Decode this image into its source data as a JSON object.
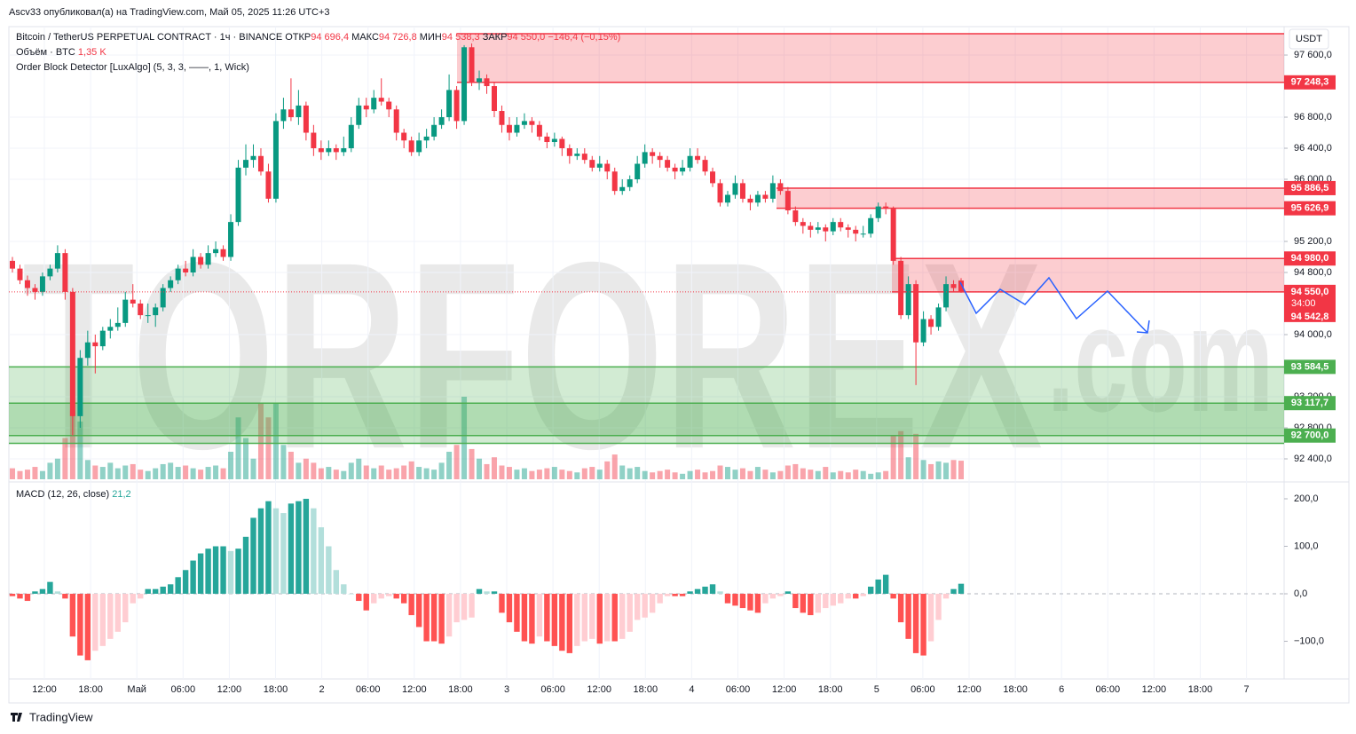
{
  "header": "Ascv33 опубликовал(а) на TradingView.com, Май 05, 2025 11:26 UTC+3",
  "footer": "TradingView",
  "watermark": [
    "TORFOREX",
    ".com"
  ],
  "chart_data": [
    {
      "type": "candlestick",
      "title": "Bitcoin / TetherUS PERPETUAL CONTRACT · 1ч · BINANCE",
      "ohlc_names": [
        "ОТКР",
        "МАКС",
        "МИН",
        "ЗАКР"
      ],
      "ohlc_value_labels": [
        "94 696,4",
        "94 726,8",
        "94 538,3",
        "94 550,0"
      ],
      "change_label": "−146,4 (−0,15%)",
      "volume_name": "Объём · BTC",
      "volume_label": "1,35 K",
      "indicator": "Order Block Detector [LuxAlgo] (5, 3, 3, ——, 1, Wick)",
      "currency": "USDT",
      "up_color": "#089981",
      "down_color": "#f23645",
      "ylim": [
        92137,
        97966
      ],
      "yticks": [
        {
          "value": 97600,
          "label": "97 600,0"
        },
        {
          "value": 96800,
          "label": "96 800,0"
        },
        {
          "value": 96400,
          "label": "96 400,0"
        },
        {
          "value": 96000,
          "label": "96 000,0"
        },
        {
          "value": 95200,
          "label": "95 200,0"
        },
        {
          "value": 94800,
          "label": "94 800,0"
        },
        {
          "value": 94000,
          "label": "94 000,0"
        },
        {
          "value": 93200,
          "label": "93 200,0"
        },
        {
          "value": 92800,
          "label": "92 800,0"
        },
        {
          "value": 92400,
          "label": "92 400,0"
        }
      ],
      "grid": true,
      "x_labels": [
        "12:00",
        "18:00",
        "Май",
        "06:00",
        "12:00",
        "18:00",
        "2",
        "06:00",
        "12:00",
        "18:00",
        "3",
        "06:00",
        "12:00",
        "18:00",
        "4",
        "06:00",
        "12:00",
        "18:00",
        "5",
        "06:00",
        "12:00",
        "18:00",
        "6",
        "06:00",
        "12:00",
        "18:00",
        "7"
      ],
      "ohlc": [
        [
          94950,
          95000,
          94800,
          94850
        ],
        [
          94850,
          94900,
          94650,
          94700
        ],
        [
          94700,
          94760,
          94500,
          94600
        ],
        [
          94600,
          94650,
          94450,
          94550
        ],
        [
          94550,
          94800,
          94500,
          94750
        ],
        [
          94750,
          94900,
          94700,
          94850
        ],
        [
          94850,
          95150,
          94800,
          95050
        ],
        [
          95050,
          95100,
          94450,
          94550
        ],
        [
          94550,
          94600,
          92700,
          92950
        ],
        [
          92950,
          93800,
          92800,
          93700
        ],
        [
          93700,
          94050,
          93600,
          93900
        ],
        [
          93900,
          94000,
          93500,
          93850
        ],
        [
          93850,
          94100,
          93800,
          94050
        ],
        [
          94050,
          94200,
          93950,
          94100
        ],
        [
          94100,
          94350,
          94050,
          94150
        ],
        [
          94150,
          94550,
          94100,
          94450
        ],
        [
          94450,
          94650,
          94350,
          94400
        ],
        [
          94400,
          94450,
          94200,
          94250
        ],
        [
          94250,
          94400,
          94150,
          94250
        ],
        [
          94250,
          94400,
          94100,
          94350
        ],
        [
          94350,
          94650,
          94300,
          94600
        ],
        [
          94600,
          94750,
          94550,
          94700
        ],
        [
          94700,
          94900,
          94650,
          94850
        ],
        [
          94850,
          94950,
          94750,
          94800
        ],
        [
          94800,
          95100,
          94750,
          95000
        ],
        [
          95000,
          95050,
          94850,
          94900
        ],
        [
          94900,
          95150,
          94850,
          95050
        ],
        [
          95050,
          95200,
          95000,
          95100
        ],
        [
          95100,
          95150,
          94950,
          95000
        ],
        [
          95000,
          95550,
          94950,
          95450
        ],
        [
          95450,
          96250,
          95400,
          96150
        ],
        [
          96150,
          96450,
          96050,
          96250
        ],
        [
          96250,
          96450,
          96150,
          96300
        ],
        [
          96300,
          96400,
          96050,
          96100
        ],
        [
          96100,
          96200,
          95700,
          95750
        ],
        [
          95750,
          96850,
          95700,
          96750
        ],
        [
          96750,
          97050,
          96650,
          96900
        ],
        [
          96900,
          97300,
          96750,
          96800
        ],
        [
          96800,
          97150,
          96700,
          96950
        ],
        [
          96950,
          97000,
          96500,
          96600
        ],
        [
          96600,
          96700,
          96300,
          96400
        ],
        [
          96400,
          96500,
          96250,
          96350
        ],
        [
          96350,
          96500,
          96300,
          96400
        ],
        [
          96400,
          96450,
          96250,
          96350
        ],
        [
          96350,
          96550,
          96300,
          96400
        ],
        [
          96400,
          96800,
          96350,
          96700
        ],
        [
          96700,
          97050,
          96650,
          96950
        ],
        [
          96950,
          97050,
          96800,
          96900
        ],
        [
          96900,
          97150,
          96850,
          97050
        ],
        [
          97050,
          97300,
          96950,
          97000
        ],
        [
          97000,
          97050,
          96800,
          96900
        ],
        [
          96900,
          96950,
          96500,
          96600
        ],
        [
          96600,
          96650,
          96400,
          96500
        ],
        [
          96500,
          96550,
          96300,
          96350
        ],
        [
          96350,
          96600,
          96300,
          96500
        ],
        [
          96500,
          96650,
          96400,
          96550
        ],
        [
          96550,
          96800,
          96500,
          96700
        ],
        [
          96700,
          96900,
          96650,
          96800
        ],
        [
          96800,
          97350,
          96750,
          97150
        ],
        [
          97150,
          97200,
          96650,
          96750
        ],
        [
          96750,
          97727,
          96700,
          97700
        ],
        [
          97700,
          97750,
          97200,
          97250
        ],
        [
          97250,
          97400,
          97150,
          97300
        ],
        [
          97300,
          97350,
          97100,
          97200
        ],
        [
          97200,
          97250,
          96800,
          96880
        ],
        [
          96880,
          96950,
          96600,
          96700
        ],
        [
          96700,
          96800,
          96500,
          96600
        ],
        [
          96600,
          96800,
          96550,
          96700
        ],
        [
          96700,
          96850,
          96650,
          96750
        ],
        [
          96750,
          96800,
          96600,
          96700
        ],
        [
          96700,
          96750,
          96500,
          96550
        ],
        [
          96550,
          96600,
          96400,
          96480
        ],
        [
          96480,
          96600,
          96420,
          96520
        ],
        [
          96520,
          96550,
          96300,
          96400
        ],
        [
          96400,
          96450,
          96200,
          96300
        ],
        [
          96300,
          96400,
          96250,
          96330
        ],
        [
          96330,
          96400,
          96200,
          96250
        ],
        [
          96250,
          96300,
          96100,
          96150
        ],
        [
          96150,
          96300,
          96100,
          96200
        ],
        [
          96200,
          96250,
          96000,
          96100
        ],
        [
          96100,
          96150,
          95800,
          95850
        ],
        [
          95850,
          96000,
          95800,
          95900
        ],
        [
          95900,
          96050,
          95850,
          96000
        ],
        [
          96000,
          96300,
          95950,
          96200
        ],
        [
          96200,
          96450,
          96150,
          96350
        ],
        [
          96350,
          96400,
          96200,
          96300
        ],
        [
          96300,
          96350,
          96150,
          96250
        ],
        [
          96250,
          96300,
          96100,
          96150
        ],
        [
          96150,
          96200,
          96000,
          96100
        ],
        [
          96100,
          96250,
          96050,
          96150
        ],
        [
          96150,
          96400,
          96100,
          96300
        ],
        [
          96300,
          96400,
          96200,
          96250
        ],
        [
          96250,
          96300,
          96050,
          96100
        ],
        [
          96100,
          96150,
          95900,
          95950
        ],
        [
          95950,
          96000,
          95650,
          95700
        ],
        [
          95700,
          95850,
          95650,
          95800
        ],
        [
          95800,
          96050,
          95750,
          95950
        ],
        [
          95950,
          96000,
          95700,
          95750
        ],
        [
          95750,
          95800,
          95600,
          95700
        ],
        [
          95700,
          95850,
          95650,
          95800
        ],
        [
          95800,
          95850,
          95700,
          95750
        ],
        [
          95750,
          96050,
          95700,
          95950
        ],
        [
          95950,
          96000,
          95800,
          95850
        ],
        [
          95850,
          95900,
          95550,
          95600
        ],
        [
          95600,
          95650,
          95400,
          95450
        ],
        [
          95450,
          95500,
          95300,
          95400
        ],
        [
          95400,
          95450,
          95250,
          95350
        ],
        [
          95350,
          95450,
          95300,
          95380
        ],
        [
          95380,
          95420,
          95200,
          95330
        ],
        [
          95330,
          95500,
          95280,
          95450
        ],
        [
          95450,
          95500,
          95330,
          95380
        ],
        [
          95380,
          95420,
          95250,
          95350
        ],
        [
          95350,
          95400,
          95200,
          95300
        ],
        [
          95300,
          95400,
          95250,
          95300
        ],
        [
          95300,
          95550,
          95250,
          95500
        ],
        [
          95500,
          95700,
          95450,
          95650
        ],
        [
          95650,
          95700,
          95550,
          95620
        ],
        [
          95620,
          95650,
          94900,
          94950
        ],
        [
          94950,
          95000,
          94200,
          94250
        ],
        [
          94250,
          94750,
          94200,
          94650
        ],
        [
          94650,
          94700,
          93350,
          93900
        ],
        [
          93900,
          94300,
          93850,
          94200
        ],
        [
          94200,
          94250,
          94000,
          94100
        ],
        [
          94100,
          94400,
          94050,
          94350
        ],
        [
          94350,
          94750,
          94300,
          94650
        ],
        [
          94650,
          94700,
          94550,
          94600
        ],
        [
          94696.4,
          94726.8,
          94538.3,
          94550
        ]
      ],
      "volume": [
        0.8,
        0.6,
        0.7,
        0.9,
        0.6,
        1.2,
        1.5,
        3.0,
        5.0,
        4.2,
        1.4,
        1.0,
        0.9,
        1.2,
        0.8,
        1.0,
        1.1,
        0.7,
        0.6,
        0.8,
        1.1,
        1.2,
        0.9,
        1.0,
        0.8,
        0.7,
        0.9,
        1.0,
        0.8,
        2.0,
        4.5,
        3.0,
        1.5,
        5.5,
        4.5,
        5.5,
        2.5,
        2.0,
        1.2,
        1.5,
        1.2,
        0.8,
        0.9,
        0.7,
        0.6,
        1.2,
        1.5,
        1.0,
        0.8,
        1.0,
        0.7,
        0.8,
        1.0,
        1.3,
        0.9,
        0.8,
        0.7,
        1.2,
        2.0,
        2.5,
        6.0,
        2.2,
        1.5,
        1.1,
        1.6,
        1.0,
        0.9,
        0.7,
        0.8,
        0.6,
        0.7,
        0.8,
        0.9,
        0.7,
        0.6,
        0.5,
        0.8,
        0.9,
        0.7,
        1.3,
        1.8,
        1.0,
        0.8,
        0.9,
        0.6,
        0.5,
        0.6,
        0.7,
        0.5,
        0.4,
        0.6,
        0.7,
        0.5,
        0.6,
        1.0,
        0.9,
        0.7,
        0.8,
        0.6,
        0.9,
        0.7,
        0.5,
        0.6,
        1.0,
        1.1,
        0.8,
        0.7,
        0.6,
        0.9,
        0.5,
        0.6,
        0.5,
        0.7,
        0.6,
        0.4,
        0.5,
        0.6,
        3.2,
        3.5,
        1.6,
        3.3,
        1.4,
        1.1,
        1.3,
        1.2,
        1.4,
        1.35
      ],
      "zones": [
        {
          "top": 97874,
          "bottom": 97248.3,
          "bottom_label": "97 248,3",
          "color": "#f23645"
        },
        {
          "top": 95886.5,
          "top_label": "95 886,5",
          "bottom": 95626.9,
          "bottom_label": "95 626,9",
          "color": "#f23645"
        },
        {
          "top": 94980,
          "top_label": "94 980,0",
          "bottom": 94550,
          "color": "#f23645"
        },
        {
          "top": 93584.5,
          "top_label": "93 584,5",
          "bottom": 92600,
          "color": "#4caf50"
        },
        {
          "top": 93117.7,
          "top_label": "93 117,7",
          "bottom": 92700,
          "bottom_label": "92 700,0",
          "color": "#4caf50"
        }
      ],
      "last_price": 94550,
      "last_price_label": "94 550,0",
      "countdown": "34:00",
      "mark_price": 94542.8,
      "mark_price_label": "94 542,8"
    },
    {
      "type": "bar",
      "title": "MACD (12, 26, close)",
      "value_label": "21,2",
      "colors": [
        "#26a69a",
        "#b2dfdb",
        "#ffcdd2",
        "#ff5252"
      ],
      "ylim": [
        -179.4,
        231.8
      ],
      "yticks": [
        {
          "value": 200,
          "label": "200,0"
        },
        {
          "value": 100,
          "label": "100,0"
        },
        {
          "value": 0,
          "label": "0,0"
        },
        {
          "value": -100,
          "label": "−100,0"
        }
      ],
      "values": [
        -5,
        -10,
        -15,
        5,
        10,
        25,
        5,
        -10,
        -90,
        -130,
        -140,
        -120,
        -110,
        -95,
        -80,
        -60,
        -20,
        -10,
        10,
        10,
        15,
        20,
        35,
        50,
        70,
        85,
        95,
        100,
        100,
        90,
        95,
        120,
        160,
        180,
        195,
        180,
        170,
        190,
        195,
        200,
        180,
        140,
        100,
        50,
        20,
        0,
        -15,
        -35,
        -20,
        -10,
        -5,
        -10,
        -20,
        -45,
        -70,
        -100,
        -100,
        -105,
        -90,
        -60,
        -55,
        -50,
        10,
        5,
        5,
        -40,
        -60,
        -80,
        -100,
        -105,
        -90,
        -100,
        -110,
        -120,
        -125,
        -110,
        -100,
        -95,
        -105,
        -100,
        -100,
        -95,
        -80,
        -55,
        -50,
        -40,
        -20,
        -5,
        -5,
        -5,
        5,
        10,
        15,
        20,
        5,
        -20,
        -25,
        -30,
        -35,
        -40,
        -20,
        -10,
        -5,
        5,
        -30,
        -40,
        -45,
        -40,
        -30,
        -25,
        -20,
        -10,
        -10,
        -5,
        15,
        30,
        40,
        -10,
        -60,
        -95,
        -125,
        -130,
        -100,
        -55,
        -10,
        10,
        21.2
      ]
    }
  ]
}
